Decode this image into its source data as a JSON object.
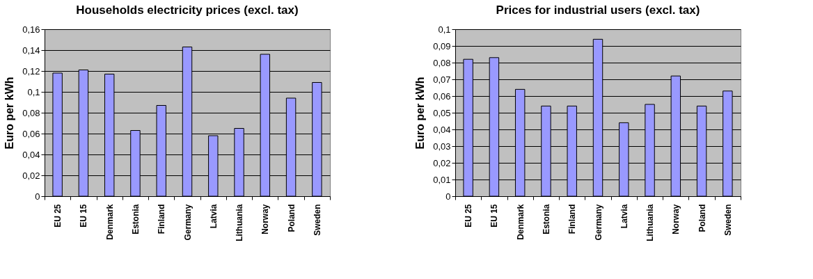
{
  "chart_data": [
    {
      "type": "bar",
      "title": "Households electricity prices (excl. tax)",
      "ylabel": "Euro per kWh",
      "categories": [
        "EU 25",
        "EU 15",
        "Denmark",
        "Estonia",
        "Finland",
        "Germany",
        "Latvia",
        "Lithuania",
        "Norway",
        "Poland",
        "Sweden"
      ],
      "values": [
        0.118,
        0.121,
        0.117,
        0.063,
        0.087,
        0.143,
        0.058,
        0.065,
        0.136,
        0.094,
        0.109
      ],
      "color": "#9999ff",
      "ylim": [
        0,
        0.16
      ],
      "yticks": [
        0,
        {
          "value": 0.02,
          "label": "0,02"
        },
        {
          "value": 0.04,
          "label": "0,04"
        },
        {
          "value": 0.06,
          "label": "0,06"
        },
        {
          "value": 0.08,
          "label": "0,08"
        },
        {
          "value": 0.1,
          "label": "0,1"
        },
        {
          "value": 0.12,
          "label": "0,12"
        },
        {
          "value": 0.14,
          "label": "0,14"
        },
        {
          "value": 0.16,
          "label": "0,16"
        }
      ],
      "grid": "y"
    },
    {
      "type": "bar",
      "title": "Prices for industrial users (excl. tax)",
      "ylabel": "Euro per kWh",
      "categories": [
        "EU 25",
        "EU 15",
        "Denmark",
        "Estonia",
        "Finland",
        "Germany",
        "Latvia",
        "Lithuania",
        "Norway",
        "Poland",
        "Sweden"
      ],
      "values": [
        0.082,
        0.083,
        0.064,
        0.054,
        0.054,
        0.094,
        0.044,
        0.055,
        0.072,
        0.054,
        0.063
      ],
      "color": "#9999ff",
      "ylim": [
        0,
        0.1
      ],
      "yticks": [
        0,
        {
          "value": 0.01,
          "label": "0,01"
        },
        {
          "value": 0.02,
          "label": "0,02"
        },
        {
          "value": 0.03,
          "label": "0,03"
        },
        {
          "value": 0.04,
          "label": "0,04"
        },
        {
          "value": 0.05,
          "label": "0,05"
        },
        {
          "value": 0.06,
          "label": "0,06"
        },
        {
          "value": 0.07,
          "label": "0,07"
        },
        {
          "value": 0.08,
          "label": "0,08"
        },
        {
          "value": 0.09,
          "label": "0,09"
        },
        {
          "value": 0.1,
          "label": "0,1"
        }
      ],
      "grid": "y"
    }
  ]
}
